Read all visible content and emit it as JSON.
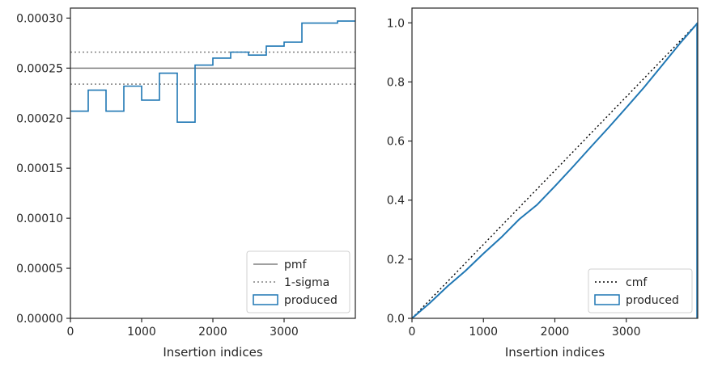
{
  "chart_data": [
    {
      "type": "step",
      "xlabel": "Insertion indices",
      "ylabel": "",
      "xlim": [
        0,
        4000
      ],
      "ylim": [
        0,
        0.00031
      ],
      "xticks": [
        0,
        1000,
        2000,
        3000
      ],
      "xtick_labels": [
        "0",
        "1000",
        "2000",
        "3000"
      ],
      "yticks": [
        0,
        5e-05,
        0.0001,
        0.00015,
        0.0002,
        0.00025,
        0.0003
      ],
      "ytick_labels": [
        "0.00000",
        "0.00005",
        "0.00010",
        "0.00015",
        "0.00020",
        "0.00025",
        "0.00030"
      ],
      "grid": false,
      "legend_position": "lower right",
      "legend": [
        "pmf",
        "1-sigma",
        "produced"
      ],
      "reference_lines": [
        {
          "name": "pmf",
          "y": 0.00025,
          "style": "solid",
          "color": "#808080"
        },
        {
          "name": "1-sigma",
          "y": 0.000266,
          "style": "dotted",
          "color": "#808080"
        },
        {
          "name": "1-sigma",
          "y": 0.000234,
          "style": "dotted",
          "color": "#808080"
        }
      ],
      "series": [
        {
          "name": "produced",
          "color": "#1f77b4",
          "bin_edges": [
            0,
            250,
            500,
            750,
            1000,
            1250,
            1500,
            1750,
            2000,
            2250,
            2500,
            2750,
            3000,
            3250,
            3500,
            3750,
            4000
          ],
          "values": [
            0.000207,
            0.000228,
            0.000207,
            0.000232,
            0.000218,
            0.000245,
            0.000196,
            0.000253,
            0.00026,
            0.000266,
            0.000263,
            0.000272,
            0.000276,
            0.000295,
            0.000295,
            0.000297
          ]
        }
      ]
    },
    {
      "type": "line",
      "xlabel": "Insertion indices",
      "ylabel": "",
      "xlim": [
        0,
        4000
      ],
      "ylim": [
        0,
        1.05
      ],
      "xticks": [
        0,
        1000,
        2000,
        3000
      ],
      "xtick_labels": [
        "0",
        "1000",
        "2000",
        "3000"
      ],
      "yticks": [
        0,
        0.2,
        0.4,
        0.6,
        0.8,
        1.0
      ],
      "ytick_labels": [
        "0.0",
        "0.2",
        "0.4",
        "0.6",
        "0.8",
        "1.0"
      ],
      "grid": false,
      "legend_position": "lower right",
      "legend": [
        "cmf",
        "produced"
      ],
      "series": [
        {
          "name": "cmf",
          "style": "dotted",
          "color": "#000000",
          "x": [
            0,
            4000
          ],
          "y": [
            0,
            1.0
          ]
        },
        {
          "name": "produced",
          "style": "solid",
          "color": "#1f77b4",
          "x": [
            0,
            250,
            500,
            750,
            1000,
            1250,
            1500,
            1750,
            2000,
            2250,
            2500,
            2750,
            3000,
            3250,
            3500,
            3750,
            4000
          ],
          "y": [
            0,
            0.052,
            0.109,
            0.161,
            0.219,
            0.274,
            0.335,
            0.384,
            0.447,
            0.512,
            0.579,
            0.645,
            0.713,
            0.782,
            0.856,
            0.93,
            1.0
          ]
        }
      ]
    }
  ]
}
